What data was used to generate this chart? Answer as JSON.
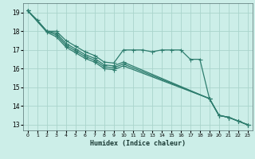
{
  "xlabel": "Humidex (Indice chaleur)",
  "bg_color": "#cceee8",
  "grid_color": "#aad4cc",
  "line_color": "#2e7d6e",
  "xlim": [
    -0.5,
    23.5
  ],
  "ylim": [
    12.7,
    19.5
  ],
  "yticks": [
    13,
    14,
    15,
    16,
    17,
    18,
    19
  ],
  "xticks": [
    0,
    1,
    2,
    3,
    4,
    5,
    6,
    7,
    8,
    9,
    10,
    11,
    12,
    13,
    14,
    15,
    16,
    17,
    18,
    19,
    20,
    21,
    22,
    23
  ],
  "line1_x": [
    0,
    1,
    2,
    3,
    4,
    5,
    6,
    7,
    8,
    9,
    10,
    11,
    12,
    13,
    14,
    15,
    16,
    17,
    18,
    19,
    20,
    21,
    22,
    23
  ],
  "line1_y": [
    19.1,
    18.6,
    18.0,
    18.0,
    17.5,
    17.2,
    16.9,
    16.7,
    16.35,
    16.3,
    17.0,
    17.0,
    17.0,
    16.9,
    17.0,
    17.0,
    17.0,
    16.5,
    16.5,
    14.4,
    13.5,
    13.4,
    13.2,
    13.0
  ],
  "line2_x": [
    0,
    2,
    3,
    4,
    5,
    6,
    7,
    8,
    9,
    10,
    19,
    20,
    21,
    22,
    23
  ],
  "line2_y": [
    19.1,
    18.0,
    17.9,
    17.35,
    17.05,
    16.75,
    16.55,
    16.2,
    16.15,
    16.35,
    14.4,
    13.5,
    13.4,
    13.2,
    13.0
  ],
  "line3_x": [
    0,
    2,
    3,
    4,
    5,
    6,
    7,
    8,
    9,
    10,
    19,
    20,
    21,
    22,
    23
  ],
  "line3_y": [
    19.1,
    18.0,
    17.8,
    17.25,
    16.95,
    16.65,
    16.45,
    16.1,
    16.05,
    16.25,
    14.4,
    13.5,
    13.4,
    13.2,
    13.0
  ],
  "line4_x": [
    0,
    2,
    3,
    4,
    5,
    6,
    7,
    8,
    9,
    10,
    19,
    20,
    21,
    22,
    23
  ],
  "line4_y": [
    19.1,
    17.95,
    17.7,
    17.15,
    16.85,
    16.55,
    16.35,
    16.0,
    15.95,
    16.15,
    14.4,
    13.5,
    13.4,
    13.2,
    13.0
  ]
}
